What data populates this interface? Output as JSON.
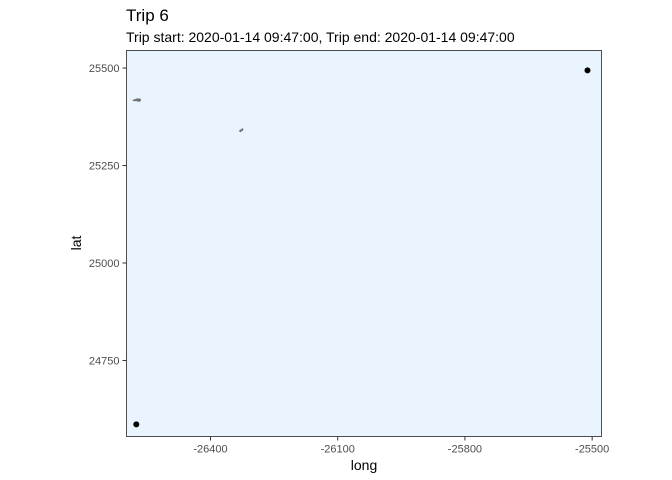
{
  "chart_data": {
    "type": "scatter",
    "title": "Trip 6",
    "subtitle": "Trip start: 2020-01-14 09:47:00, Trip end: 2020-01-14 09:47:00",
    "xlabel": "long",
    "ylabel": "lat",
    "xlim": [
      -26598,
      -25478
    ],
    "ylim": [
      24555,
      25545
    ],
    "x_ticks": [
      -26400,
      -26100,
      -25800,
      -25500
    ],
    "y_ticks": [
      24750,
      25000,
      25250,
      25500
    ],
    "grid": false,
    "panel_background": "#eaf4fe",
    "panel_border": "#4d4d4d",
    "point_color": "#000000",
    "land_color": "#707070",
    "points": [
      {
        "x": -25511,
        "y": 25494
      },
      {
        "x": -26575,
        "y": 24586
      }
    ],
    "land": [
      {
        "x": [
          -26582,
          -26574,
          -26566,
          -26564,
          -26567,
          -26575,
          -26582,
          -26583,
          -26582
        ],
        "y": [
          25418,
          25421,
          25421,
          25418,
          25414,
          25416,
          25416,
          25417,
          25418
        ]
      },
      {
        "x": [
          -26332,
          -26324,
          -26323,
          -26330,
          -26332
        ],
        "y": [
          25339,
          25345,
          25341,
          25336,
          25339
        ]
      }
    ]
  }
}
